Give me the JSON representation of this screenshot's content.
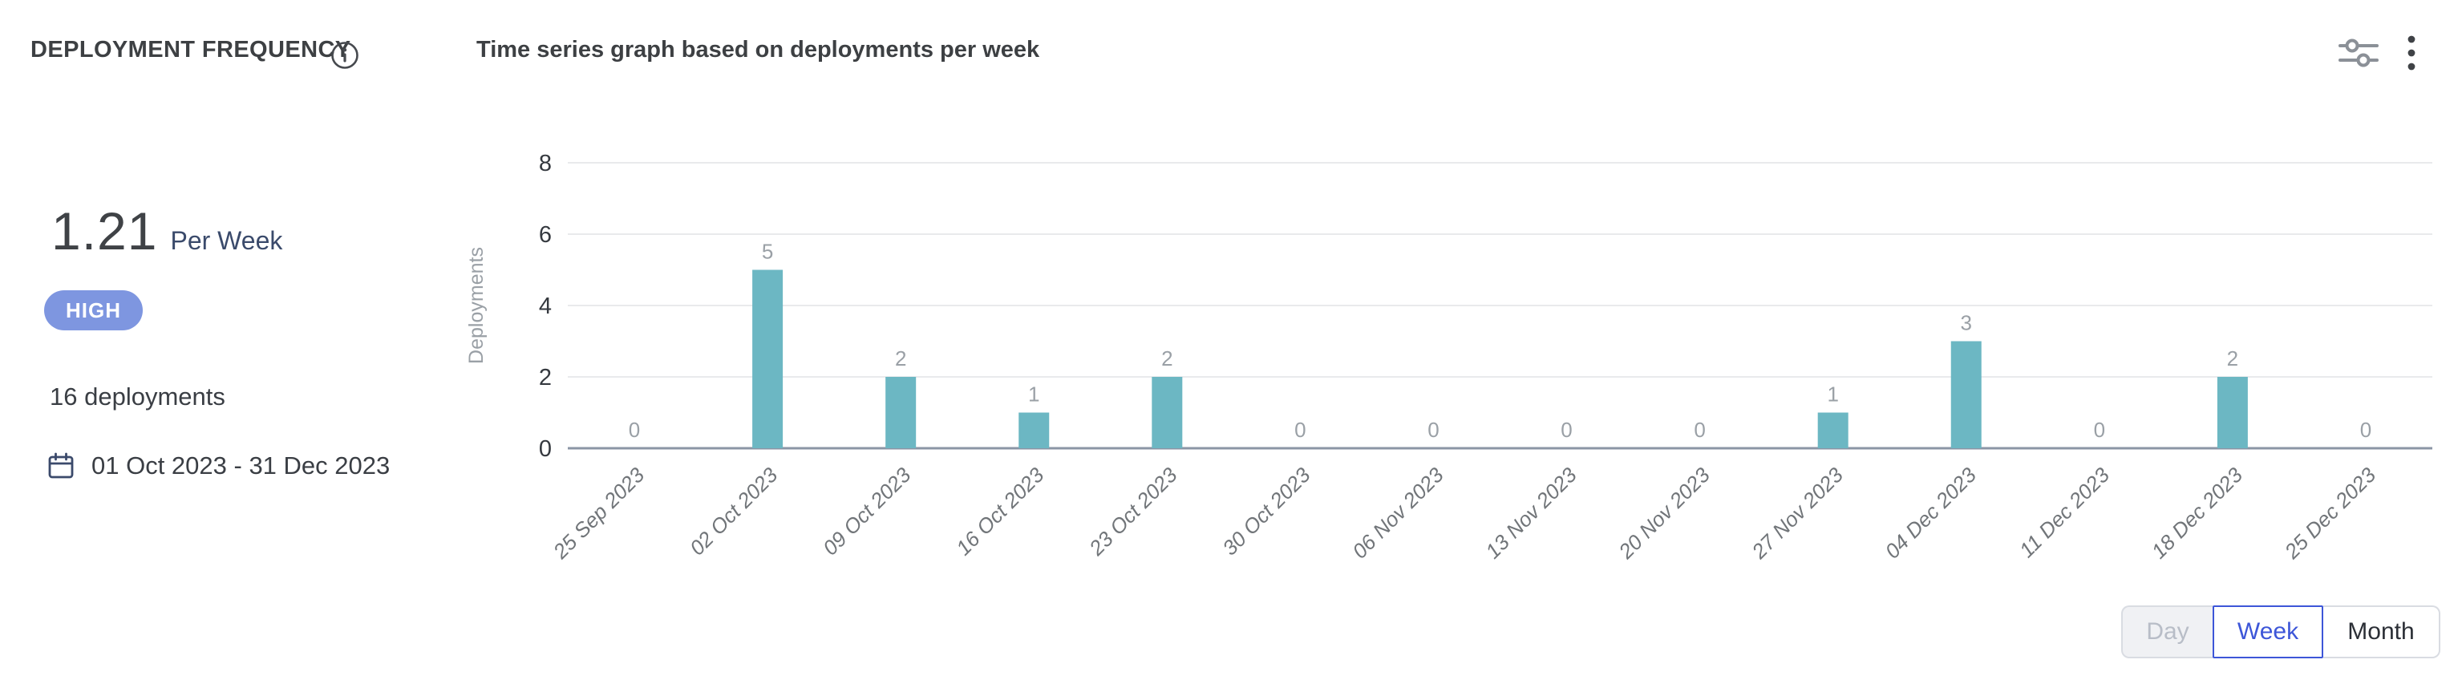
{
  "header": {
    "title": "DEPLOYMENT FREQUENCY",
    "subtitle": "Time series graph based on deployments per week"
  },
  "stats": {
    "value": "1.21",
    "unit": "Per Week",
    "badge": "HIGH",
    "deployments_total": "16 deployments",
    "date_range": "01 Oct 2023 - 31 Dec 2023"
  },
  "icons": {
    "info": "info-circle",
    "sliders": "filter-sliders",
    "kebab": "vertical-three-dots",
    "calendar": "calendar"
  },
  "chart_data": {
    "type": "bar",
    "title": "Time series graph based on deployments per week",
    "xlabel": "",
    "ylabel": "Deployments",
    "categories": [
      "25 Sep 2023",
      "02 Oct 2023",
      "09 Oct 2023",
      "16 Oct 2023",
      "23 Oct 2023",
      "30 Oct 2023",
      "06 Nov 2023",
      "13 Nov 2023",
      "20 Nov 2023",
      "27 Nov 2023",
      "04 Dec 2023",
      "11 Dec 2023",
      "18 Dec 2023",
      "25 Dec 2023"
    ],
    "values": [
      0,
      5,
      2,
      1,
      2,
      0,
      0,
      0,
      0,
      1,
      3,
      0,
      2,
      0
    ],
    "yticks": [
      0,
      2,
      4,
      6,
      8
    ],
    "ylim": [
      0,
      8
    ],
    "grid": true,
    "value_labels": true,
    "legend": "none",
    "bar_color": "#6cb7c3",
    "value_label_color": "#9aa0a6",
    "tick_label_color": "#35393f",
    "x_label_color": "#717579",
    "grid_color": "#e9eaec",
    "axis_color": "#8b95a5"
  },
  "controls": {
    "granularity": [
      {
        "label": "Day",
        "state": "disabled"
      },
      {
        "label": "Week",
        "state": "selected"
      },
      {
        "label": "Month",
        "state": "default"
      }
    ]
  },
  "colors": {
    "accent_blue": "#3d56d8",
    "badge_blue": "#7e96e0",
    "bar_teal": "#6cb7c3",
    "navy_text": "#3a4a6b",
    "body_text": "#3a3e44"
  }
}
